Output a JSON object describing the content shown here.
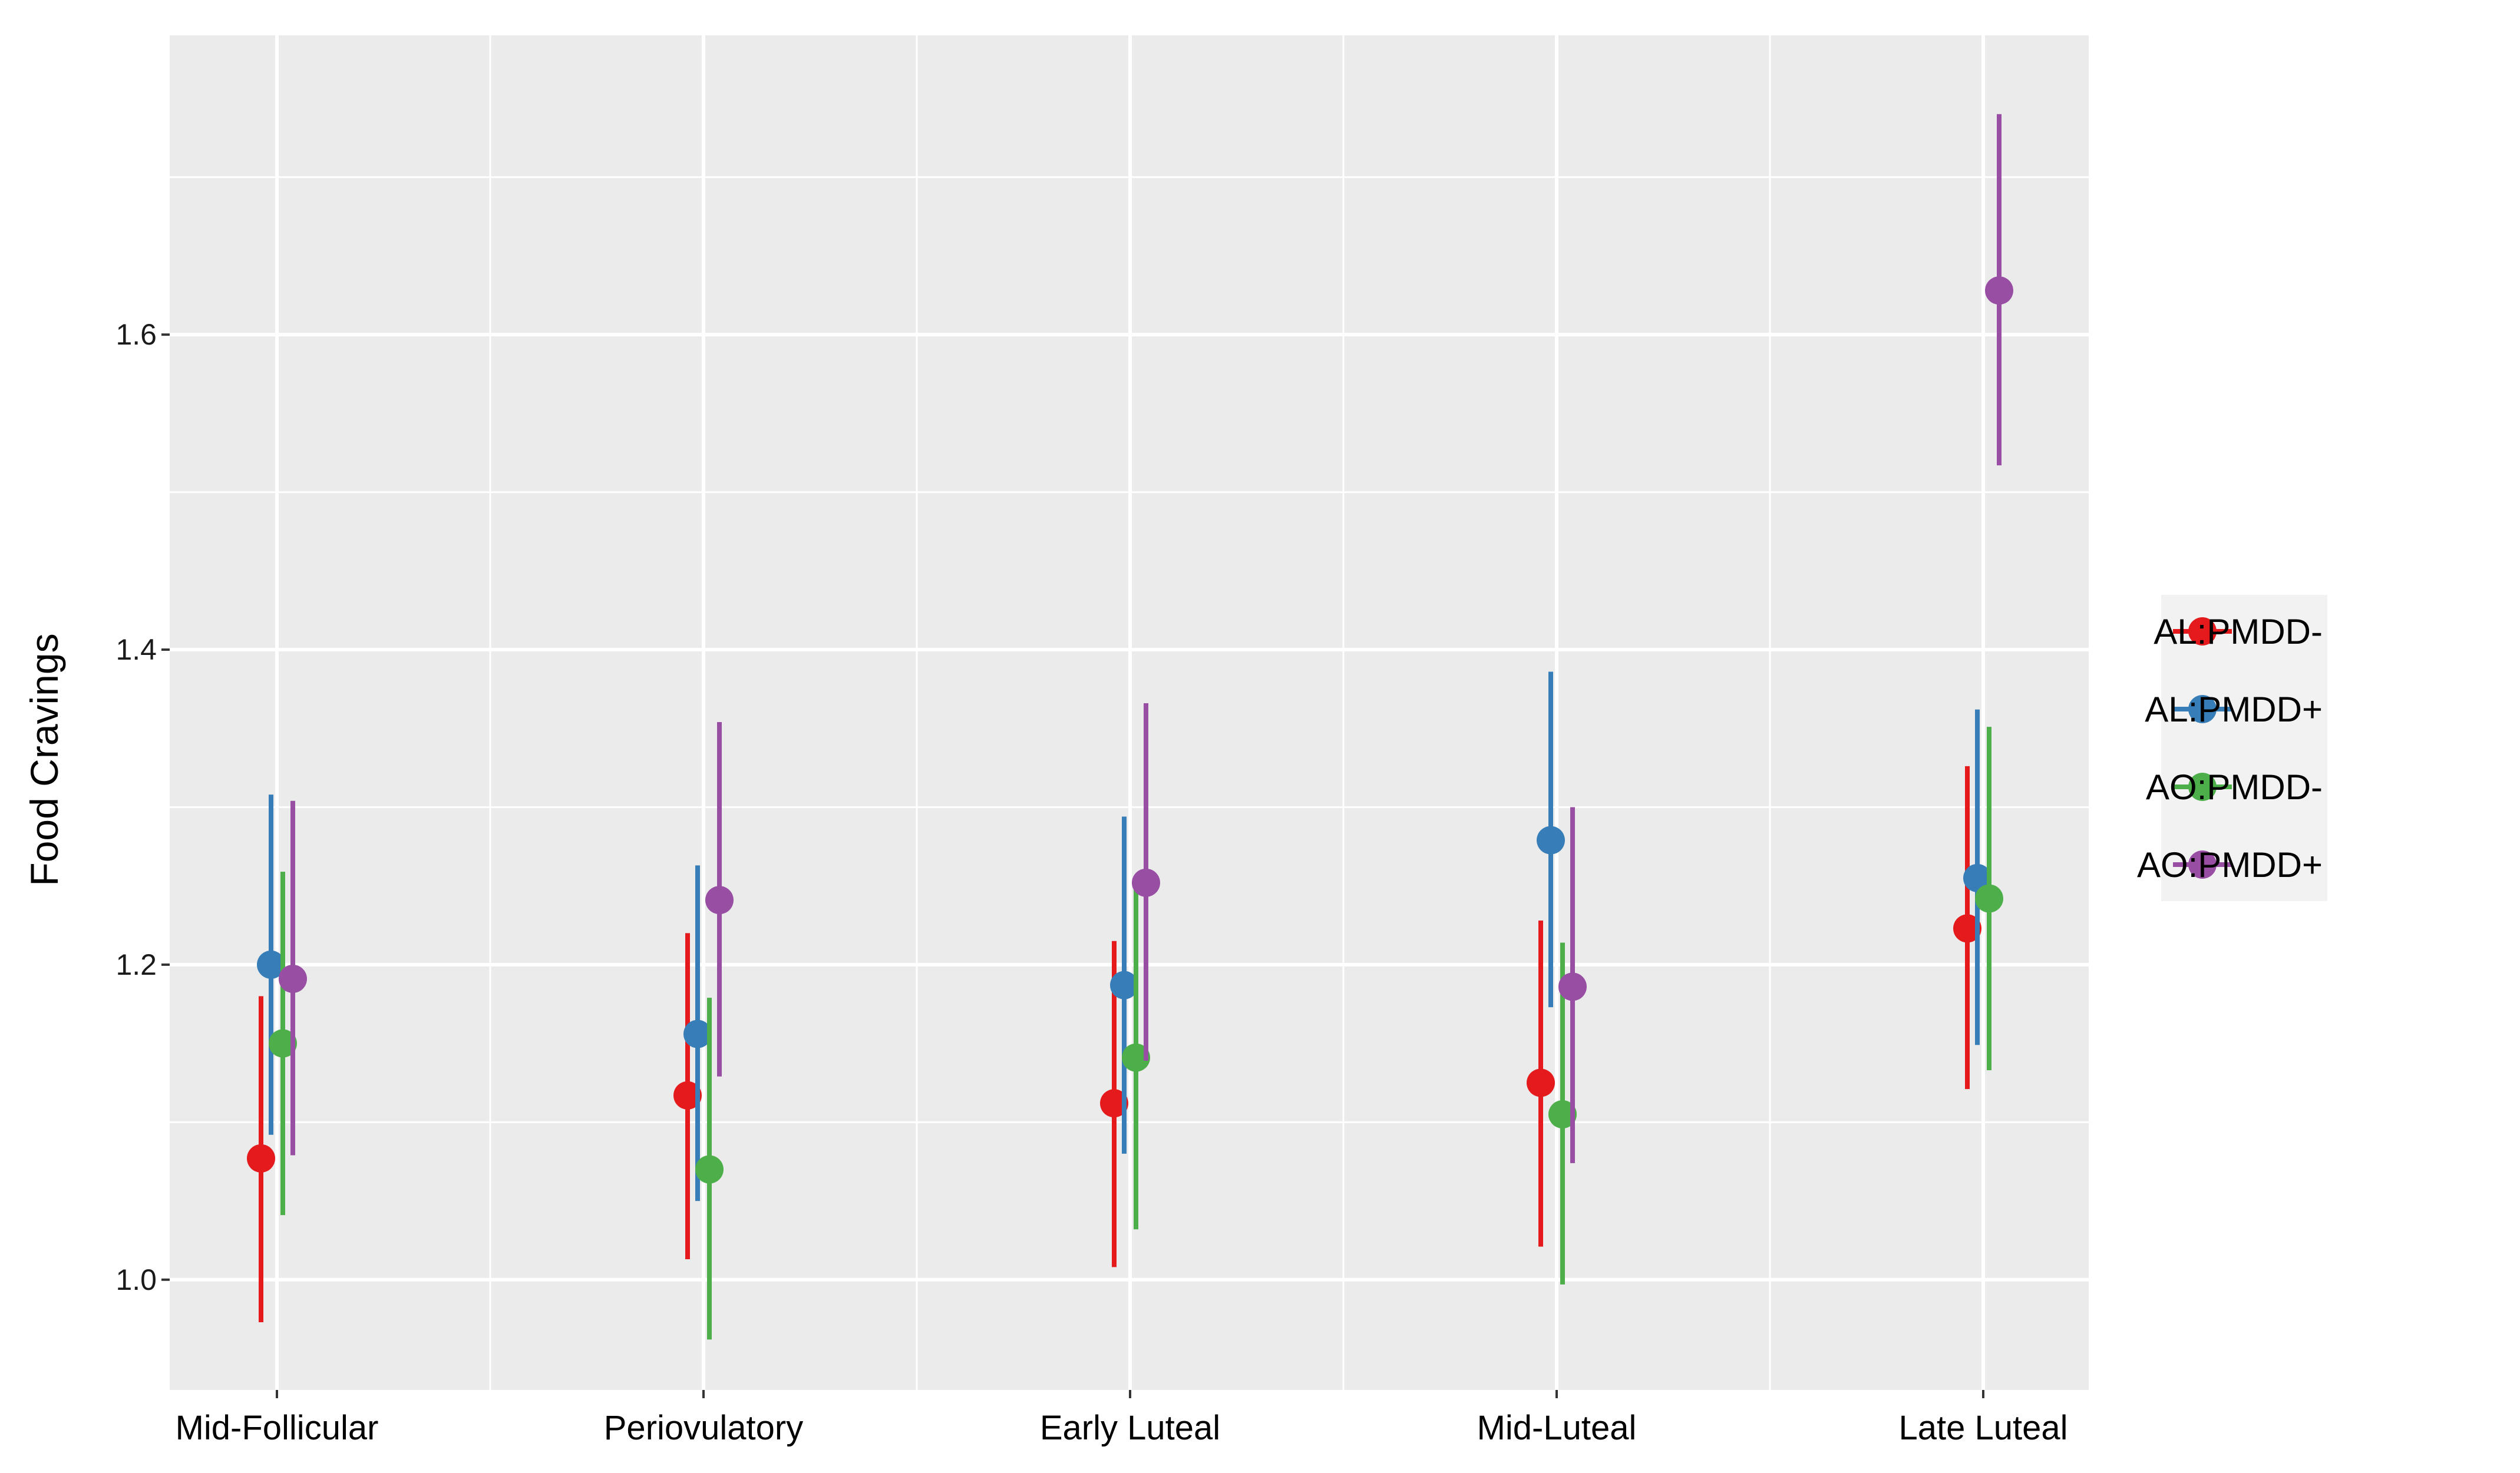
{
  "chart_data": {
    "type": "scatter",
    "subtype": "point-range (mean with error bars)",
    "title": "",
    "xlabel": "",
    "ylabel": "Food Cravings",
    "categories": [
      "Mid-Follicular",
      "Periovulatory",
      "Early Luteal",
      "Mid-Luteal",
      "Late Luteal"
    ],
    "ylim": [
      0.93,
      1.79
    ],
    "y_ticks": [
      1.0,
      1.2,
      1.4,
      1.6
    ],
    "y_tick_labels": [
      "1.0",
      "1.2",
      "1.4",
      "1.6"
    ],
    "grid": true,
    "legend_position": "right",
    "series": [
      {
        "name": "AL:PMDD-",
        "color": "#E41A1C",
        "values": [
          1.077,
          1.117,
          1.112,
          1.125,
          1.223
        ],
        "lower": [
          0.973,
          1.013,
          1.008,
          1.021,
          1.121
        ],
        "upper": [
          1.18,
          1.22,
          1.215,
          1.228,
          1.326
        ]
      },
      {
        "name": "AL:PMDD+",
        "color": "#377EB8",
        "values": [
          1.2,
          1.156,
          1.187,
          1.279,
          1.255
        ],
        "lower": [
          1.092,
          1.05,
          1.08,
          1.173,
          1.149
        ],
        "upper": [
          1.308,
          1.263,
          1.294,
          1.386,
          1.362
        ]
      },
      {
        "name": "AO:PMDD-",
        "color": "#4DAF4A",
        "values": [
          1.15,
          1.07,
          1.141,
          1.105,
          1.242
        ],
        "lower": [
          1.041,
          0.962,
          1.032,
          0.997,
          1.133
        ],
        "upper": [
          1.259,
          1.179,
          1.25,
          1.214,
          1.351
        ]
      },
      {
        "name": "AO:PMDD+",
        "color": "#984EA3",
        "values": [
          1.191,
          1.241,
          1.252,
          1.186,
          1.628
        ],
        "lower": [
          1.079,
          1.129,
          1.139,
          1.074,
          1.517
        ],
        "upper": [
          1.304,
          1.354,
          1.366,
          1.3,
          1.74
        ]
      }
    ],
    "panel_background": "#EBEBEB",
    "grid_color": "#FFFFFF"
  }
}
